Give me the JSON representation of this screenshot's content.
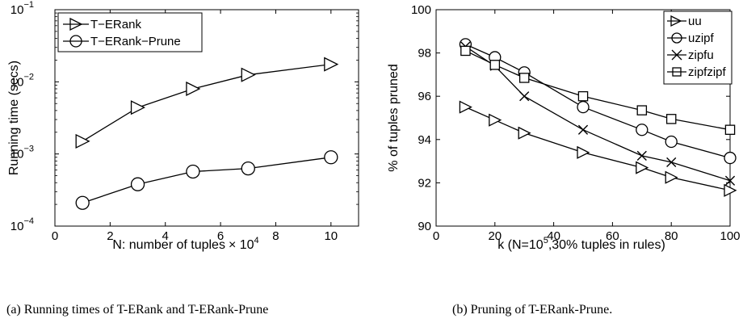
{
  "chart_data": [
    {
      "type": "line",
      "xlabel": "N: number of tuples",
      "xlabel_suffix": "× 10",
      "xlabel_exp": "4",
      "ylabel": "Running time (secs)",
      "xlim": [
        0,
        11
      ],
      "ylim": [
        0.0001,
        0.1
      ],
      "yscale": "log",
      "xticks": [
        0,
        2,
        4,
        6,
        8,
        10
      ],
      "xtick_labels": [
        "0",
        "2",
        "4",
        "6",
        "8",
        "10"
      ],
      "yticks": [
        0.0001,
        0.001,
        0.01,
        0.1
      ],
      "ytick_labels": [
        {
          "base": "10",
          "exp": "−4"
        },
        {
          "base": "10",
          "exp": "−3"
        },
        {
          "base": "10",
          "exp": "−2"
        },
        {
          "base": "10",
          "exp": "−1"
        }
      ],
      "legend_position": "top-left",
      "series": [
        {
          "name": "T−ERank",
          "marker": "triangle-right",
          "x": [
            1,
            3,
            5,
            7,
            10
          ],
          "y": [
            0.0015,
            0.0044,
            0.008,
            0.0125,
            0.0175
          ]
        },
        {
          "name": "T−ERank−Prune",
          "marker": "circle",
          "x": [
            1,
            3,
            5,
            7,
            10
          ],
          "y": [
            0.00021,
            0.00038,
            0.00057,
            0.00063,
            0.0009
          ]
        }
      ],
      "caption": "(a) Running times of T-ERank and T-ERank-Prune"
    },
    {
      "type": "line",
      "xlabel_pre": "k (N=10",
      "xlabel_exp": "5",
      "xlabel_post": ",30% tuples in rules)",
      "ylabel": "% of tuples pruned",
      "xlim": [
        0,
        100
      ],
      "ylim": [
        90,
        100
      ],
      "xticks": [
        0,
        20,
        40,
        60,
        80,
        100
      ],
      "xtick_labels": [
        "0",
        "20",
        "40",
        "60",
        "80",
        "100"
      ],
      "yticks": [
        90,
        92,
        94,
        96,
        98,
        100
      ],
      "ytick_labels": [
        "90",
        "92",
        "94",
        "96",
        "98",
        "100"
      ],
      "legend_position": "top-right",
      "series": [
        {
          "name": "uu",
          "marker": "triangle-right",
          "x": [
            10,
            20,
            30,
            50,
            70,
            80,
            100
          ],
          "y": [
            95.5,
            94.9,
            94.3,
            93.4,
            92.7,
            92.25,
            91.65
          ]
        },
        {
          "name": "uzipf",
          "marker": "circle",
          "x": [
            10,
            20,
            30,
            50,
            70,
            80,
            100
          ],
          "y": [
            98.4,
            97.8,
            97.1,
            95.5,
            94.45,
            93.9,
            93.15
          ]
        },
        {
          "name": "zipfu",
          "marker": "x",
          "x": [
            10,
            20,
            30,
            50,
            70,
            80,
            100
          ],
          "y": [
            98.3,
            97.4,
            96.0,
            94.45,
            93.25,
            92.95,
            92.1
          ]
        },
        {
          "name": "zipfzipf",
          "marker": "square",
          "x": [
            10,
            20,
            30,
            50,
            70,
            80,
            100
          ],
          "y": [
            98.1,
            97.45,
            96.85,
            96.0,
            95.35,
            94.95,
            94.45
          ]
        }
      ],
      "caption": "(b) Pruning of T-ERank-Prune."
    }
  ]
}
